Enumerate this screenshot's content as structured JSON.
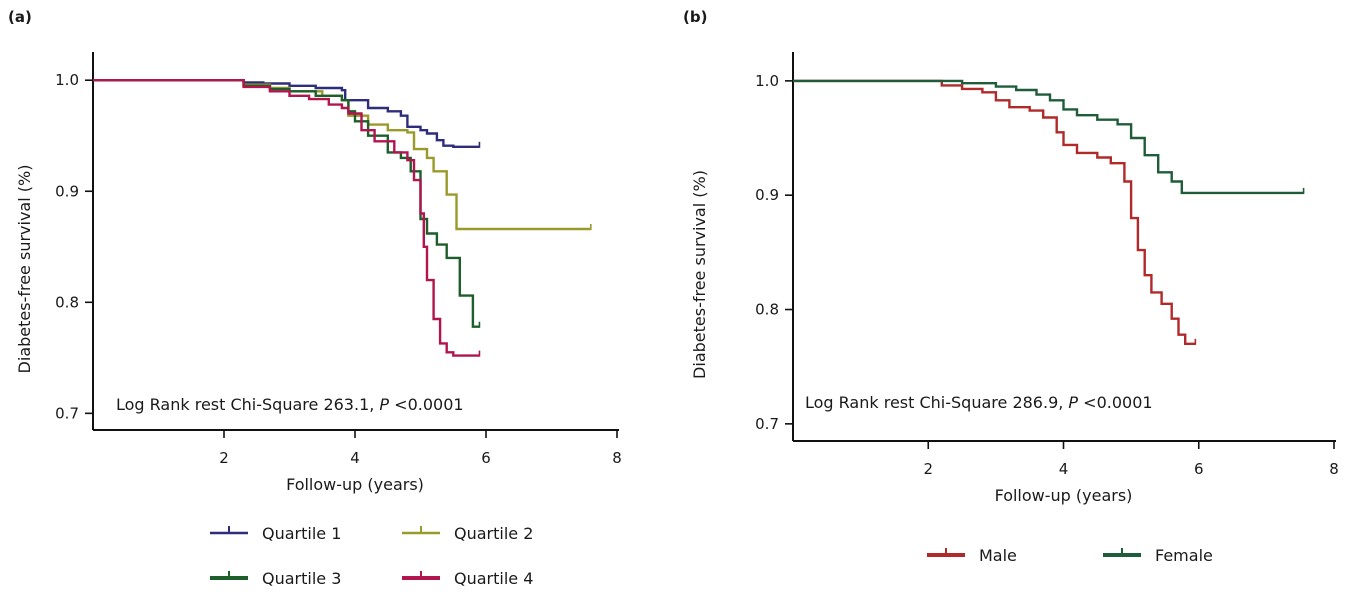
{
  "chart_data": [
    {
      "panel_label": "(a)",
      "type": "line",
      "xlabel": "Follow-up (years)",
      "ylabel": "Diabetes-free survival (%)",
      "xlim": [
        0,
        8
      ],
      "ylim": [
        0.685,
        1.02
      ],
      "xticks": [
        2,
        4,
        6,
        8
      ],
      "yticks": [
        0.7,
        0.8,
        0.9,
        1.0
      ],
      "annotation": "Log Rank rest Chi-Square 263.1, P <0.0001",
      "annotation_parts": {
        "pre": "Log Rank rest Chi-Square 263.1, ",
        "italic": "P",
        "post": " <0.0001"
      },
      "legend_position": "bottom",
      "series": [
        {
          "name": "Quartile 1",
          "color": "#2e2d7c",
          "x": [
            0,
            2.0,
            2.3,
            2.6,
            3.0,
            3.4,
            3.8,
            3.85,
            4.2,
            4.5,
            4.7,
            4.8,
            5.0,
            5.1,
            5.25,
            5.35,
            5.5,
            5.7,
            5.9
          ],
          "y": [
            1.0,
            1.0,
            0.998,
            0.997,
            0.995,
            0.993,
            0.991,
            0.982,
            0.975,
            0.972,
            0.968,
            0.958,
            0.955,
            0.952,
            0.946,
            0.941,
            0.94,
            0.94,
            0.94
          ]
        },
        {
          "name": "Quartile 2",
          "color": "#9a9a2a",
          "x": [
            0,
            2.0,
            2.3,
            2.7,
            3.0,
            3.5,
            3.8,
            3.9,
            4.2,
            4.5,
            4.8,
            4.9,
            5.1,
            5.2,
            5.4,
            5.55,
            5.6,
            7.6
          ],
          "y": [
            1.0,
            1.0,
            0.996,
            0.993,
            0.99,
            0.986,
            0.982,
            0.968,
            0.96,
            0.955,
            0.953,
            0.938,
            0.93,
            0.918,
            0.897,
            0.866,
            0.866,
            0.866
          ]
        },
        {
          "name": "Quartile 3",
          "color": "#1e5e2a",
          "x": [
            0,
            2.0,
            2.3,
            2.7,
            3.0,
            3.4,
            3.8,
            3.9,
            4.0,
            4.2,
            4.5,
            4.7,
            4.85,
            5.0,
            5.1,
            5.25,
            5.4,
            5.55,
            5.6,
            5.7,
            5.8,
            5.9
          ],
          "y": [
            1.0,
            1.0,
            0.995,
            0.992,
            0.99,
            0.986,
            0.982,
            0.972,
            0.963,
            0.95,
            0.935,
            0.93,
            0.918,
            0.875,
            0.862,
            0.852,
            0.84,
            0.84,
            0.806,
            0.806,
            0.778,
            0.778
          ]
        },
        {
          "name": "Quartile 4",
          "color": "#b0154e",
          "x": [
            0,
            2.0,
            2.3,
            2.7,
            3.0,
            3.3,
            3.6,
            3.8,
            3.9,
            4.1,
            4.3,
            4.6,
            4.8,
            4.9,
            5.0,
            5.05,
            5.1,
            5.2,
            5.3,
            5.4,
            5.5,
            5.7,
            5.9
          ],
          "y": [
            1.0,
            1.0,
            0.994,
            0.99,
            0.986,
            0.983,
            0.978,
            0.975,
            0.97,
            0.955,
            0.945,
            0.935,
            0.928,
            0.91,
            0.88,
            0.85,
            0.82,
            0.785,
            0.763,
            0.755,
            0.752,
            0.752,
            0.752
          ]
        }
      ]
    },
    {
      "panel_label": "(b)",
      "type": "line",
      "xlabel": "Follow-up (years)",
      "ylabel": "Diabetes-free survival (%)",
      "xlim": [
        0,
        8
      ],
      "ylim": [
        0.685,
        1.02
      ],
      "xticks": [
        2,
        4,
        6,
        8
      ],
      "yticks": [
        0.7,
        0.8,
        0.9,
        1.0
      ],
      "annotation": "Log Rank rest Chi-Square 286.9, P <0.0001",
      "annotation_parts": {
        "pre": "Log Rank rest Chi-Square 286.9, ",
        "italic": "P",
        "post": " <0.0001"
      },
      "legend_position": "bottom",
      "series": [
        {
          "name": "Male",
          "color": "#b12a2a",
          "x": [
            0,
            2.0,
            2.2,
            2.5,
            2.8,
            3.0,
            3.2,
            3.5,
            3.7,
            3.9,
            4.0,
            4.2,
            4.5,
            4.7,
            4.9,
            5.0,
            5.1,
            5.2,
            5.3,
            5.45,
            5.6,
            5.7,
            5.8,
            5.95
          ],
          "y": [
            1.0,
            1.0,
            0.996,
            0.993,
            0.99,
            0.983,
            0.977,
            0.974,
            0.968,
            0.955,
            0.944,
            0.937,
            0.933,
            0.928,
            0.912,
            0.88,
            0.852,
            0.83,
            0.815,
            0.805,
            0.792,
            0.778,
            0.77,
            0.77
          ]
        },
        {
          "name": "Female",
          "color": "#1f5c3a",
          "x": [
            0,
            2.0,
            2.5,
            3.0,
            3.3,
            3.6,
            3.8,
            4.0,
            4.2,
            4.5,
            4.8,
            5.0,
            5.2,
            5.4,
            5.6,
            5.75,
            7.55
          ],
          "y": [
            1.0,
            1.0,
            0.998,
            0.995,
            0.992,
            0.988,
            0.983,
            0.975,
            0.97,
            0.966,
            0.962,
            0.95,
            0.935,
            0.92,
            0.912,
            0.902,
            0.902
          ]
        }
      ]
    }
  ]
}
